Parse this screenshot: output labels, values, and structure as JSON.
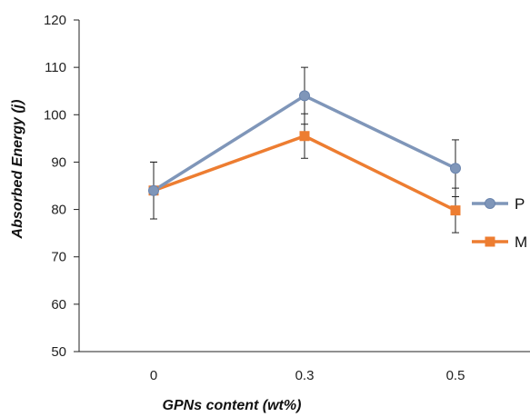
{
  "chart_data": {
    "type": "line",
    "title": "",
    "xlabel": "GPNs content (wt%)",
    "ylabel": "Absorbed Energy (j)",
    "categories": [
      "0",
      "0.3",
      "0.5"
    ],
    "ylim": [
      50,
      120
    ],
    "yticks": [
      "50",
      "60",
      "70",
      "80",
      "90",
      "100",
      "110",
      "120"
    ],
    "grid": false,
    "legend_position": "right",
    "series": [
      {
        "name": "P",
        "color": "#7F96B9",
        "marker": "circle",
        "values": [
          84,
          104,
          88.7
        ],
        "error": [
          6,
          6,
          6
        ]
      },
      {
        "name": "M",
        "color": "#ED7D31",
        "marker": "square",
        "values": [
          84,
          95.5,
          79.8
        ],
        "error": [
          6,
          4.7,
          4.7
        ]
      }
    ]
  }
}
